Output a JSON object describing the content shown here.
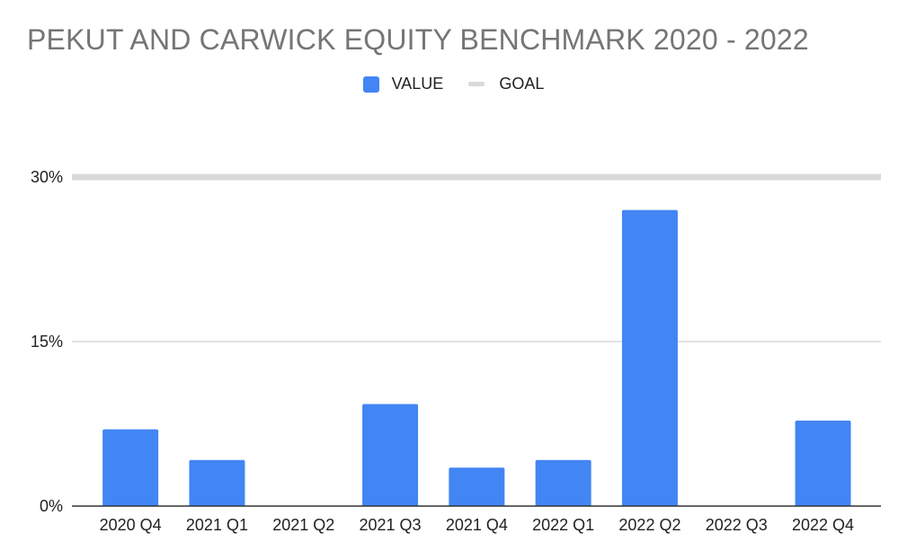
{
  "colors": {
    "value": "#4285f4",
    "goal": "#d9d9d9",
    "gridline": "#d9d9d9",
    "baseline": "#333333",
    "title": "#757575"
  },
  "chart_data": {
    "type": "bar",
    "title": "PEKUT AND CARWICK EQUITY BENCHMARK 2020 - 2022",
    "categories": [
      "2020 Q4",
      "2021 Q1",
      "2021 Q2",
      "2021 Q3",
      "2021 Q4",
      "2022 Q1",
      "2022 Q2",
      "2022 Q3",
      "2022 Q4"
    ],
    "series": [
      {
        "name": "VALUE",
        "type": "bar",
        "values": [
          7.0,
          4.2,
          0,
          9.3,
          3.5,
          4.2,
          27.0,
          0,
          7.8
        ]
      },
      {
        "name": "GOAL",
        "type": "line",
        "values": [
          30,
          30,
          30,
          30,
          30,
          30,
          30,
          30,
          30
        ]
      }
    ],
    "ylim": [
      0,
      30
    ],
    "yticks": [
      0,
      15,
      30
    ],
    "ytick_labels": [
      "0%",
      "15%",
      "30%"
    ],
    "xlabel": "",
    "ylabel": "",
    "legend": "top-center",
    "grid": true
  }
}
